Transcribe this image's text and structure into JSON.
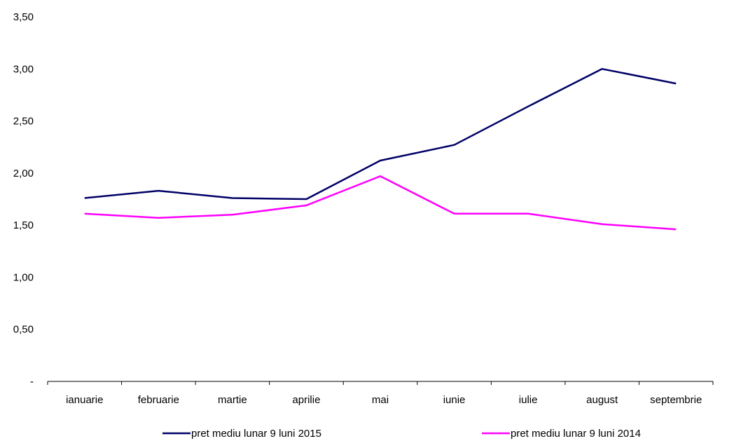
{
  "chart_data": {
    "type": "line",
    "categories": [
      "ianuarie",
      "februarie",
      "martie",
      "aprilie",
      "mai",
      "iunie",
      "iulie",
      "august",
      "septembrie"
    ],
    "series": [
      {
        "name": "pret mediu lunar 9 luni 2015",
        "color": "#000066",
        "values": [
          1.76,
          1.83,
          1.76,
          1.75,
          2.12,
          2.27,
          2.64,
          3.0,
          2.86
        ]
      },
      {
        "name": "pret mediu lunar 9 luni 2014",
        "color": "#ff00ff",
        "values": [
          1.61,
          1.57,
          1.6,
          1.69,
          1.97,
          1.61,
          1.61,
          1.51,
          1.46
        ]
      }
    ],
    "ylim": [
      0,
      3.5
    ],
    "yticks": [
      0,
      0.5,
      1.0,
      1.5,
      2.0,
      2.5,
      3.0,
      3.5
    ],
    "ytick_labels": [
      "-",
      "0,50",
      "1,00",
      "1,50",
      "2,00",
      "2,50",
      "3,00",
      "3,50"
    ],
    "title": "",
    "xlabel": "",
    "ylabel": "",
    "grid": false,
    "legend_position": "bottom"
  }
}
